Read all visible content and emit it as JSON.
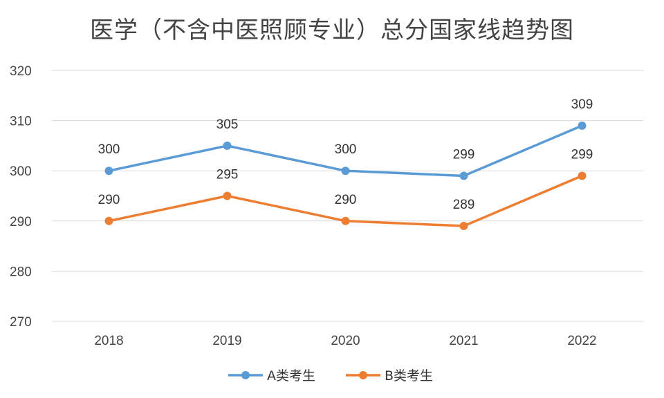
{
  "chart_data": {
    "type": "line",
    "title": "医学（不含中医照顾专业）总分国家线趋势图",
    "xlabel": "",
    "ylabel": "",
    "categories": [
      "2018",
      "2019",
      "2020",
      "2021",
      "2022"
    ],
    "series": [
      {
        "name": "A类考生",
        "values": [
          300,
          305,
          300,
          299,
          309
        ],
        "color": "#5b9bd5"
      },
      {
        "name": "B类考生",
        "values": [
          290,
          295,
          290,
          289,
          299
        ],
        "color": "#ed7d31"
      }
    ],
    "ylim": [
      270,
      320
    ],
    "yticks": [
      270,
      280,
      290,
      300,
      310,
      320
    ],
    "grid": true,
    "legend": "bottom",
    "data_labels": true
  }
}
